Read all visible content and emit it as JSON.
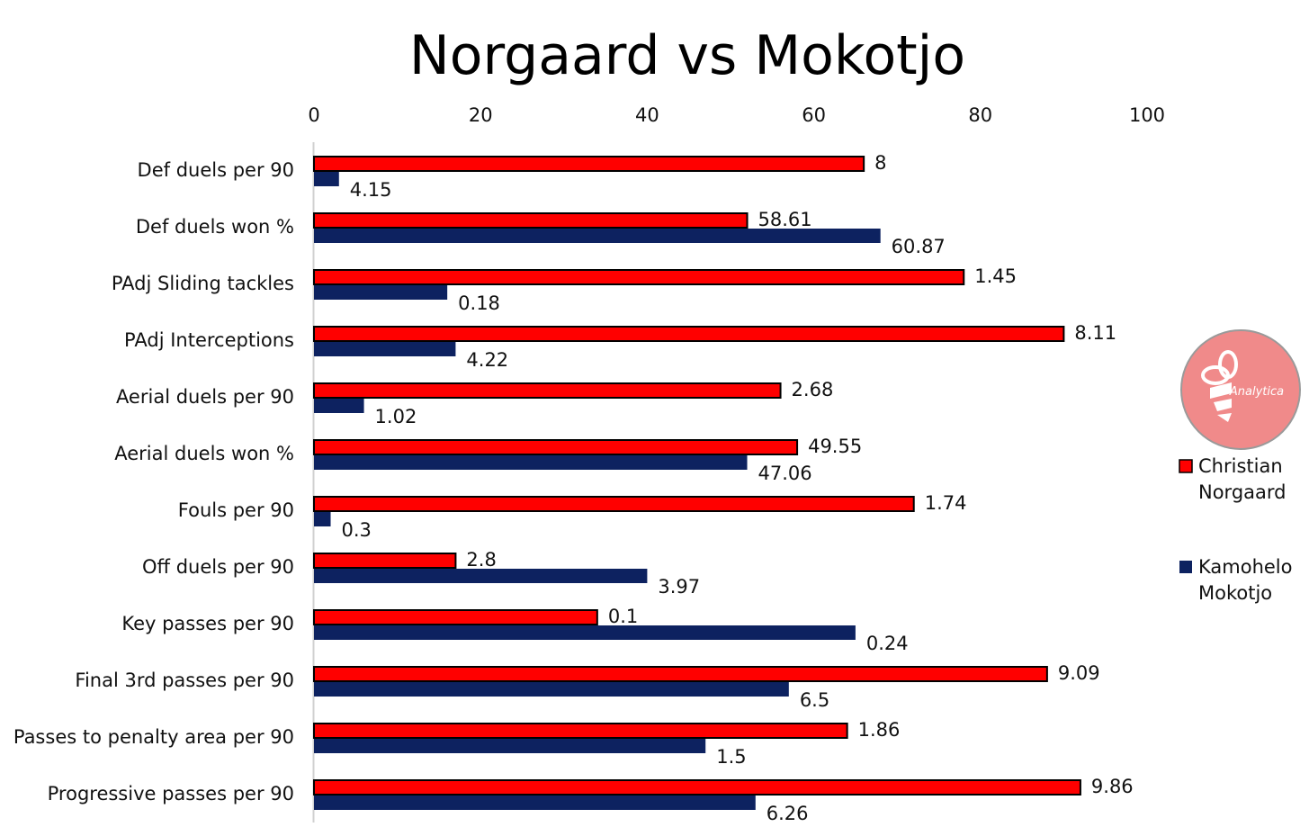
{
  "chart_data": {
    "type": "bar",
    "orientation": "horizontal",
    "title": "Norgaard vs Mokotjo",
    "xlim": [
      0,
      100
    ],
    "xticks": [
      "0",
      "20",
      "40",
      "60",
      "80",
      "100"
    ],
    "categories": [
      "Def duels per 90",
      "Def duels won %",
      "PAdj Sliding tackles",
      "PAdj Interceptions",
      "Aerial duels per 90",
      "Aerial duels won %",
      "Fouls per 90",
      "Off duels per 90",
      "Key passes per 90",
      "Final 3rd passes per 90",
      "Passes to penalty area per 90",
      "Progressive passes per 90"
    ],
    "series": [
      {
        "name": "Christian Norgaard",
        "color": "#ff0000",
        "values": [
          66,
          52,
          78,
          90,
          56,
          58,
          72,
          17,
          34,
          88,
          64,
          92
        ],
        "labels": [
          "8",
          "58.61",
          "1.45",
          "8.11",
          "2.68",
          "49.55",
          "1.74",
          "2.8",
          "0.1",
          "9.09",
          "1.86",
          "9.86"
        ]
      },
      {
        "name": "Kamohelo Mokotjo",
        "color": "#0d2260",
        "values": [
          3,
          68,
          16,
          17,
          6,
          52,
          2,
          40,
          65,
          57,
          47,
          53
        ],
        "labels": [
          "4.15",
          "60.87",
          "0.18",
          "4.22",
          "1.02",
          "47.06",
          "0.3",
          "3.97",
          "0.24",
          "6.5",
          "1.5",
          "6.26"
        ]
      }
    ],
    "legend": {
      "placement": "right",
      "entries": [
        {
          "line1": "Christian",
          "line2": "Norgaard",
          "color": "#ff0000"
        },
        {
          "line1": "Kamohelo",
          "line2": "Mokotjo",
          "color": "#0d2260"
        }
      ]
    },
    "logo": {
      "text": "Analytica",
      "color": "#f08080"
    }
  }
}
